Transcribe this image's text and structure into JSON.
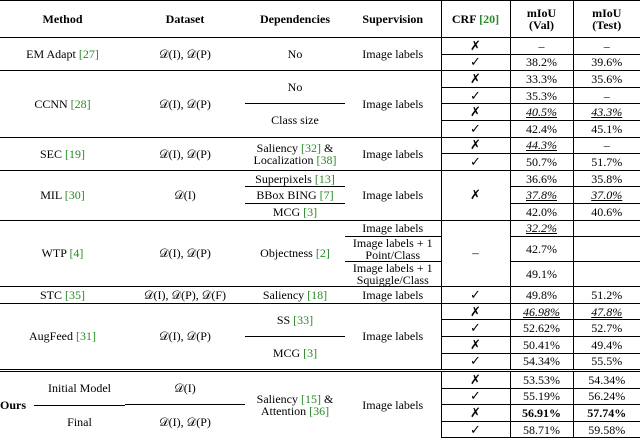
{
  "table": {
    "header": [
      "Method",
      "Dataset",
      "Dependencies",
      "Supervision",
      "CRF [20]",
      "mIoU\n(Val)",
      "mIoU\n(Test)"
    ],
    "groups": [
      {
        "method": "EM Adapt [27]",
        "dataset": "𝒟(I), 𝒟(P)",
        "dependencies": "No",
        "supervision": "Image labels",
        "crf": [
          "✗",
          "✓"
        ],
        "val": [
          "–",
          "38.2%"
        ],
        "test": [
          "–",
          "39.6%"
        ]
      },
      {
        "method": "CCNN [28]",
        "dataset": "𝒟(I), 𝒟(P)",
        "dependencies": [
          "No",
          null,
          "Class size",
          null
        ],
        "supervision": "Image labels",
        "crf": [
          "✗",
          "✓",
          "✗",
          "✓"
        ],
        "val": [
          "33.3%",
          "35.3%",
          "40.5%",
          "42.4%"
        ],
        "test": [
          "35.6%",
          "–",
          "43.3%",
          "45.1%"
        ],
        "emphasis": {
          "2": "italic-underline"
        }
      },
      {
        "method": "SEC [19]",
        "dataset": "𝒟(I), 𝒟(P)",
        "dependencies": "Saliency [32] & Localization [38]",
        "supervision": "Image labels",
        "crf": [
          "✗",
          "✓"
        ],
        "val": [
          "44.3%",
          "50.7%"
        ],
        "test": [
          "–",
          "51.7%"
        ],
        "emphasis": {
          "0": "italic-underline"
        }
      },
      {
        "method": "MIL [30]",
        "dataset": "𝒟(I)",
        "dependencies": [
          "Superpixels [13]",
          "BBox BING [7]",
          "MCG [3]"
        ],
        "supervision": "Image labels",
        "crf": "✗",
        "val": [
          "36.6%",
          "37.8%",
          "42.0%"
        ],
        "test": [
          "35.8%",
          "37.0%",
          "40.6%"
        ],
        "emphasis": {
          "1": "italic-underline"
        }
      },
      {
        "method": "WTP [4]",
        "dataset": "𝒟(I), 𝒟(P)",
        "dependencies": "Objectness [2]",
        "supervision": [
          "Image labels",
          "Image labels + 1 Point/Class",
          "Image labels + 1 Squiggle/Class"
        ],
        "crf": "–",
        "val": [
          "32.2%",
          "42.7%",
          "49.1%"
        ],
        "test": [
          null,
          null,
          null
        ],
        "emphasis": {
          "0": "italic-underline"
        }
      },
      {
        "method": "STC [35]",
        "dataset": "𝒟(I), 𝒟(P), 𝒟(F)",
        "dependencies": "Saliency [18]",
        "supervision": "Image labels",
        "crf": [
          "✓"
        ],
        "val": [
          "49.8%"
        ],
        "test": [
          "51.2%"
        ]
      },
      {
        "method": "AugFeed [31]",
        "dataset": "𝒟(I), 𝒟(P)",
        "dependencies": [
          "SS [33]",
          null,
          "MCG [3]",
          null
        ],
        "supervision": "Image labels",
        "crf": [
          "✗",
          "✓",
          "✗",
          "✓"
        ],
        "val": [
          "46.98%",
          "52.62%",
          "50.41%",
          "54.34%"
        ],
        "test": [
          "47.8%",
          "52.7%",
          "49.4%",
          "55.5%"
        ],
        "emphasis": {
          "0": "italic-underline"
        }
      },
      {
        "method": "Ours",
        "variants": [
          "Initial Model",
          "Final"
        ],
        "dataset": [
          "𝒟(I)",
          null,
          "𝒟(I), 𝒟(P)",
          null
        ],
        "dependencies": "Saliency [15] & Attention [36]",
        "supervision": "Image labels",
        "crf": [
          "✗",
          "✓",
          "✗",
          "✓"
        ],
        "val": [
          "53.53%",
          "55.19%",
          "56.91%",
          "58.71%"
        ],
        "test": [
          "54.34%",
          "56.24%",
          "57.74%",
          "59.58%"
        ],
        "emphasis": {
          "2": "bold"
        }
      }
    ]
  }
}
